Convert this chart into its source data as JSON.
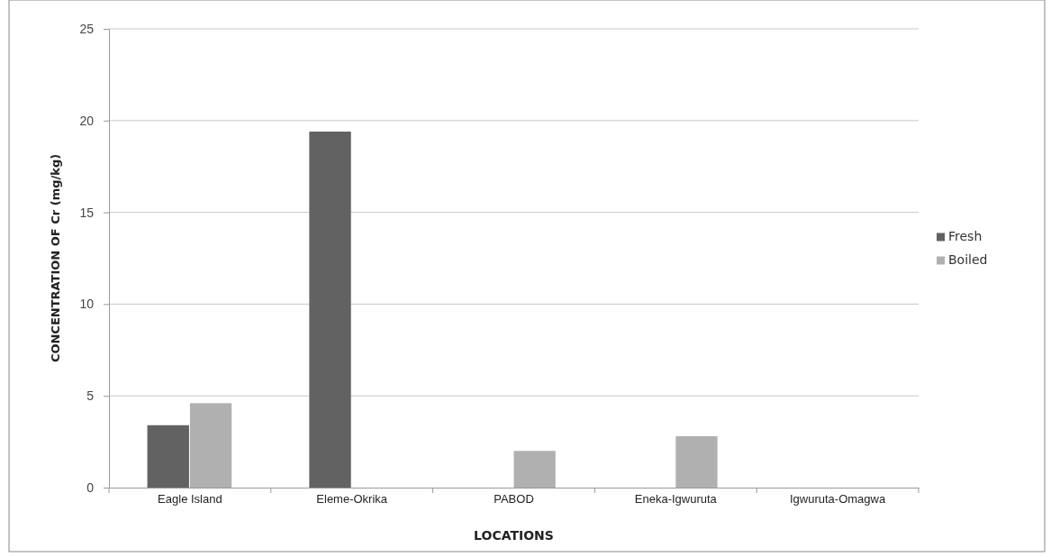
{
  "chart_data": {
    "type": "bar",
    "xlabel": "LOCATIONS",
    "ylabel": "CONCENTRATION OF Cr (mg/kg)",
    "categories": [
      "Eagle Island",
      "Eleme-Okrika",
      "PABOD",
      "Eneka-Igwuruta",
      "Igwuruta-Omagwa"
    ],
    "series": [
      {
        "name": "Fresh",
        "color": "#626262",
        "values": [
          3.4,
          19.4,
          0,
          0,
          0
        ]
      },
      {
        "name": "Boiled",
        "color": "#b0b0b0",
        "values": [
          4.6,
          0,
          2.0,
          2.8,
          0
        ]
      }
    ],
    "ylim": [
      0,
      25
    ],
    "yticks": [
      0,
      5,
      10,
      15,
      20,
      25
    ],
    "grid": "y",
    "legend": "right"
  }
}
